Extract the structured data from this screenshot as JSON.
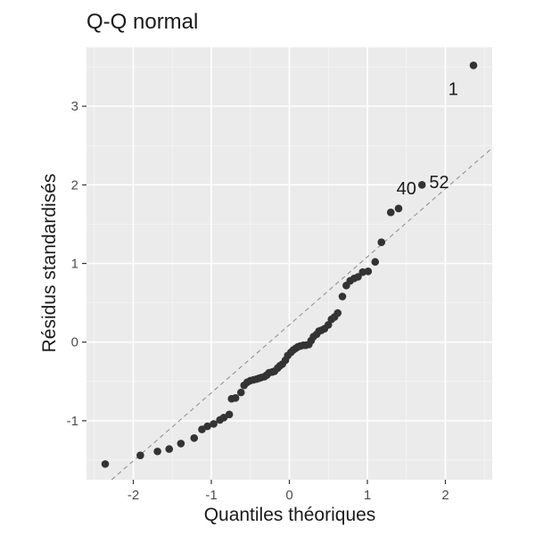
{
  "chart_data": {
    "type": "scatter",
    "title": "Q-Q normal",
    "xlabel": "Quantiles théoriques",
    "ylabel": "Résidus standardisés",
    "xlim": [
      -2.6,
      2.6
    ],
    "ylim": [
      -1.75,
      3.75
    ],
    "x_ticks": [
      -2,
      -1,
      0,
      1,
      2
    ],
    "y_ticks": [
      -1,
      0,
      1,
      2,
      3
    ],
    "x_tick_labels": [
      "-2",
      "-1",
      "0",
      "1",
      "2"
    ],
    "y_tick_labels": [
      "-1",
      "0",
      "1",
      "2",
      "3"
    ],
    "grid": true,
    "reference_line": {
      "slope": 0.865,
      "intercept": 0.22
    },
    "points": [
      [
        -2.36,
        -1.55
      ],
      [
        -1.91,
        -1.44
      ],
      [
        -1.69,
        -1.39
      ],
      [
        -1.54,
        -1.36
      ],
      [
        -1.39,
        -1.29
      ],
      [
        -1.22,
        -1.22
      ],
      [
        -1.12,
        -1.11
      ],
      [
        -1.05,
        -1.07
      ],
      [
        -0.97,
        -1.04
      ],
      [
        -0.89,
        -0.99
      ],
      [
        -0.84,
        -0.96
      ],
      [
        -0.77,
        -0.92
      ],
      [
        -0.74,
        -0.72
      ],
      [
        -0.69,
        -0.71
      ],
      [
        -0.62,
        -0.64
      ],
      [
        -0.58,
        -0.55
      ],
      [
        -0.54,
        -0.51
      ],
      [
        -0.5,
        -0.49
      ],
      [
        -0.46,
        -0.48
      ],
      [
        -0.42,
        -0.47
      ],
      [
        -0.39,
        -0.46
      ],
      [
        -0.36,
        -0.45
      ],
      [
        -0.32,
        -0.44
      ],
      [
        -0.29,
        -0.42
      ],
      [
        -0.26,
        -0.39
      ],
      [
        -0.22,
        -0.38
      ],
      [
        -0.19,
        -0.37
      ],
      [
        -0.15,
        -0.33
      ],
      [
        -0.12,
        -0.3
      ],
      [
        -0.09,
        -0.28
      ],
      [
        -0.05,
        -0.23
      ],
      [
        -0.02,
        -0.17
      ],
      [
        0.02,
        -0.13
      ],
      [
        0.05,
        -0.1
      ],
      [
        0.08,
        -0.08
      ],
      [
        0.11,
        -0.06
      ],
      [
        0.14,
        -0.05
      ],
      [
        0.18,
        -0.04
      ],
      [
        0.21,
        -0.04
      ],
      [
        0.25,
        -0.03
      ],
      [
        0.28,
        0.02
      ],
      [
        0.31,
        0.07
      ],
      [
        0.35,
        0.1
      ],
      [
        0.38,
        0.14
      ],
      [
        0.41,
        0.15
      ],
      [
        0.45,
        0.17
      ],
      [
        0.5,
        0.22
      ],
      [
        0.54,
        0.29
      ],
      [
        0.58,
        0.32
      ],
      [
        0.62,
        0.37
      ],
      [
        0.68,
        0.58
      ],
      [
        0.73,
        0.72
      ],
      [
        0.78,
        0.78
      ],
      [
        0.83,
        0.81
      ],
      [
        0.88,
        0.83
      ],
      [
        0.94,
        0.89
      ],
      [
        1.01,
        0.9
      ],
      [
        1.1,
        1.02
      ],
      [
        1.18,
        1.27
      ],
      [
        1.3,
        1.65
      ],
      [
        1.4,
        1.7
      ],
      [
        1.7,
        2.0
      ],
      [
        2.36,
        3.52
      ]
    ],
    "annotations": [
      {
        "label": "1",
        "x": 2.1,
        "y": 3.22
      },
      {
        "label": "40",
        "x": 1.5,
        "y": 1.96
      },
      {
        "label": "52",
        "x": 1.92,
        "y": 2.04
      }
    ]
  }
}
